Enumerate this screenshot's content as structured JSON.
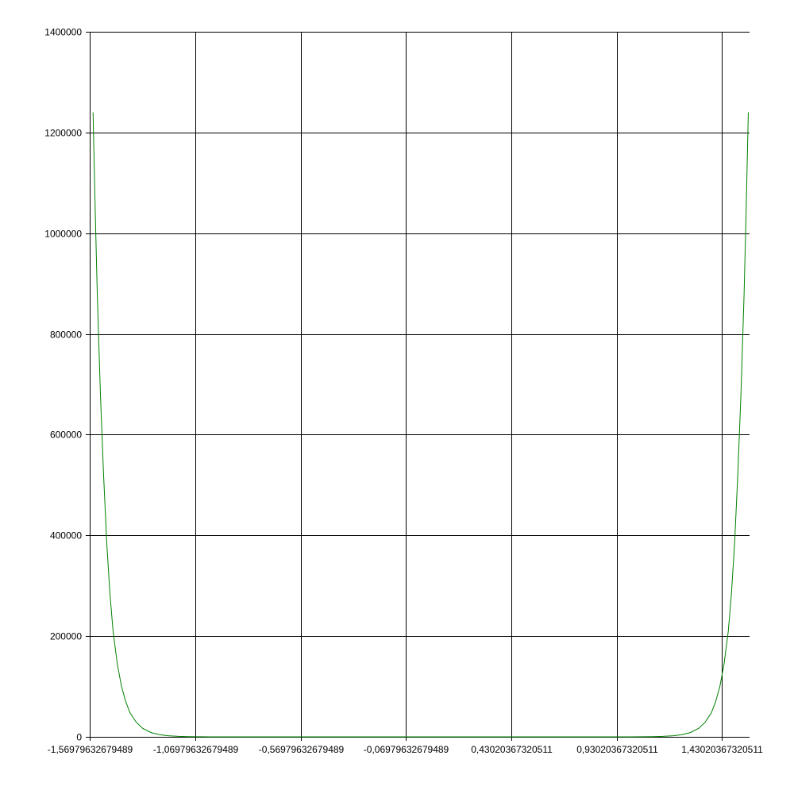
{
  "chart_data": {
    "type": "line",
    "title": "",
    "xlabel": "",
    "ylabel": "",
    "grid": true,
    "legend": "none",
    "xlim": [
      -1.57079632679489,
      1.56079632679489
    ],
    "ylim": [
      0,
      1400000
    ],
    "x_ticks": [
      {
        "value": -1.56979632679489,
        "label": "-1,56979632679489"
      },
      {
        "value": -1.06979632679489,
        "label": "-1,06979632679489"
      },
      {
        "value": -0.56979632679489,
        "label": "-0,56979632679489"
      },
      {
        "value": -0.06979632679489,
        "label": "-0,06979632679489"
      },
      {
        "value": 0.43020367320511,
        "label": "0,43020367320511"
      },
      {
        "value": 0.93020367320511,
        "label": "0,93020367320511"
      },
      {
        "value": 1.43020367320511,
        "label": "1,43020367320511"
      }
    ],
    "y_ticks": [
      {
        "value": 0,
        "label": "0"
      },
      {
        "value": 200000,
        "label": "200000"
      },
      {
        "value": 400000,
        "label": "400000"
      },
      {
        "value": 600000,
        "label": "600000"
      },
      {
        "value": 800000,
        "label": "800000"
      },
      {
        "value": 1000000,
        "label": "1000000"
      },
      {
        "value": 1200000,
        "label": "1200000"
      },
      {
        "value": 1400000,
        "label": "1400000"
      }
    ],
    "series": [
      {
        "color": "#008000",
        "x": [
          -1.555,
          -1.545,
          -1.535,
          -1.52,
          -1.505,
          -1.49,
          -1.475,
          -1.46,
          -1.44,
          -1.42,
          -1.4,
          -1.38,
          -1.35,
          -1.32,
          -1.28,
          -1.24,
          -1.2,
          -1.15,
          -1.1,
          -1.05,
          -1.0,
          -0.9,
          -0.8,
          -0.6,
          -0.4,
          -0.2,
          0.0,
          0.2,
          0.4,
          0.6,
          0.8,
          0.9,
          1.0,
          1.05,
          1.1,
          1.15,
          1.2,
          1.24,
          1.28,
          1.32,
          1.35,
          1.38,
          1.4,
          1.42,
          1.44,
          1.46,
          1.475,
          1.49,
          1.505,
          1.52,
          1.535,
          1.545,
          1.555
        ],
        "y": [
          1240000,
          1050000,
          880000,
          680000,
          520000,
          385000,
          285000,
          210000,
          145000,
          100000,
          70000,
          48000,
          29000,
          17000,
          8500,
          4300,
          2200,
          900,
          380,
          150,
          60,
          12,
          3,
          0,
          0,
          0,
          0,
          0,
          0,
          0,
          3,
          12,
          60,
          150,
          380,
          900,
          2200,
          4300,
          8500,
          17000,
          29000,
          48000,
          70000,
          100000,
          145000,
          210000,
          285000,
          385000,
          520000,
          680000,
          880000,
          1050000,
          1240000
        ]
      }
    ]
  }
}
